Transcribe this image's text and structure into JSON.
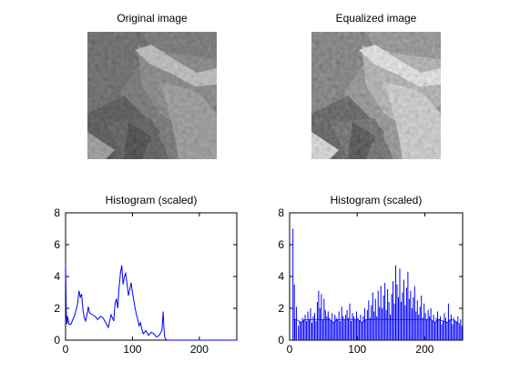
{
  "panels": {
    "original_title": "Original image",
    "equalized_title": "Equalized image",
    "hist1_title": "Histogram (scaled)",
    "hist2_title": "Histogram (scaled)"
  },
  "colors": {
    "line": "#0000ff",
    "axis": "#000000",
    "background": "#ffffff"
  },
  "chart_data": [
    {
      "type": "line",
      "title": "Histogram (scaled)",
      "xlabel": "",
      "ylabel": "",
      "xlim": [
        0,
        256
      ],
      "ylim": [
        0,
        8
      ],
      "xticks": [
        "0",
        "100",
        "200"
      ],
      "yticks": [
        "0",
        "2",
        "4",
        "6",
        "8"
      ],
      "grid": false,
      "x": [
        0,
        1,
        2,
        3,
        5,
        8,
        10,
        14,
        18,
        20,
        22,
        24,
        26,
        28,
        30,
        32,
        34,
        36,
        40,
        44,
        48,
        52,
        56,
        60,
        64,
        68,
        72,
        74,
        76,
        78,
        80,
        82,
        84,
        86,
        88,
        90,
        92,
        94,
        96,
        98,
        100,
        102,
        104,
        106,
        108,
        110,
        112,
        114,
        116,
        118,
        120,
        124,
        128,
        132,
        136,
        140,
        144,
        146,
        147,
        148,
        150,
        152,
        256
      ],
      "values": [
        4.8,
        1.8,
        1.0,
        1.5,
        1.0,
        1.0,
        1.2,
        1.6,
        2.3,
        3.1,
        2.7,
        2.9,
        1.9,
        1.4,
        1.2,
        1.6,
        2.1,
        1.7,
        1.6,
        1.5,
        1.3,
        1.5,
        1.4,
        1.1,
        0.8,
        1.6,
        1.2,
        2.3,
        2.6,
        2.0,
        3.3,
        4.2,
        4.7,
        3.5,
        4.0,
        4.2,
        3.5,
        2.8,
        3.2,
        3.6,
        3.0,
        2.5,
        2.0,
        1.6,
        1.3,
        0.9,
        1.1,
        0.7,
        0.4,
        0.5,
        0.6,
        0.3,
        0.5,
        0.4,
        0.2,
        0.3,
        0.6,
        1.8,
        0.8,
        0.2,
        0.05,
        0.0,
        0.0
      ]
    },
    {
      "type": "bar",
      "title": "Histogram (scaled)",
      "xlabel": "",
      "ylabel": "",
      "xlim": [
        0,
        256
      ],
      "ylim": [
        0,
        8
      ],
      "xticks": [
        "0",
        "100",
        "200"
      ],
      "yticks": [
        "0",
        "2",
        "4",
        "6",
        "8"
      ],
      "grid": false,
      "x": [
        5,
        7,
        8,
        10,
        13,
        15,
        17,
        19,
        21,
        23,
        25,
        27,
        29,
        31,
        33,
        35,
        37,
        39,
        41,
        43,
        45,
        47,
        49,
        51,
        53,
        55,
        57,
        59,
        61,
        63,
        65,
        67,
        69,
        71,
        73,
        75,
        77,
        79,
        81,
        83,
        85,
        87,
        89,
        91,
        93,
        95,
        97,
        99,
        101,
        103,
        105,
        107,
        109,
        111,
        113,
        115,
        117,
        119,
        121,
        123,
        125,
        127,
        129,
        131,
        133,
        135,
        137,
        139,
        141,
        143,
        145,
        147,
        149,
        151,
        153,
        155,
        157,
        159,
        161,
        163,
        165,
        167,
        169,
        171,
        173,
        175,
        177,
        179,
        181,
        183,
        185,
        187,
        189,
        191,
        193,
        195,
        197,
        199,
        201,
        203,
        205,
        207,
        209,
        211,
        213,
        215,
        217,
        219,
        221,
        223,
        225,
        227,
        229,
        231,
        233,
        235,
        237,
        239,
        241,
        243,
        245,
        247,
        249,
        251,
        253,
        255
      ],
      "values": [
        7.0,
        3.5,
        1.3,
        2.1,
        0.9,
        1.2,
        1.1,
        1.4,
        1.3,
        1.6,
        1.2,
        1.8,
        1.3,
        2.0,
        1.1,
        1.5,
        1.7,
        1.2,
        2.4,
        3.1,
        2.0,
        2.9,
        1.3,
        2.6,
        1.9,
        1.5,
        1.8,
        1.4,
        1.2,
        1.7,
        1.1,
        1.6,
        1.4,
        1.3,
        1.8,
        1.2,
        2.1,
        1.5,
        1.3,
        1.6,
        1.9,
        1.4,
        2.3,
        1.2,
        1.7,
        1.5,
        1.3,
        1.8,
        1.4,
        1.2,
        1.6,
        1.1,
        1.5,
        2.0,
        1.3,
        1.9,
        2.5,
        1.4,
        2.2,
        3.0,
        1.8,
        2.6,
        1.5,
        3.1,
        2.1,
        3.4,
        2.0,
        2.8,
        3.6,
        1.9,
        3.2,
        2.4,
        1.6,
        2.9,
        3.7,
        2.3,
        4.7,
        3.5,
        2.7,
        4.5,
        2.4,
        3.0,
        3.8,
        2.2,
        3.3,
        4.3,
        2.6,
        3.1,
        2.0,
        2.7,
        3.4,
        1.8,
        2.5,
        1.6,
        2.1,
        2.8,
        1.4,
        2.3,
        1.7,
        1.3,
        1.9,
        1.5,
        2.0,
        1.2,
        1.6,
        1.1,
        1.4,
        1.8,
        1.3,
        1.5,
        1.0,
        1.2,
        1.7,
        1.4,
        1.1,
        2.3,
        1.3,
        1.6,
        1.0,
        1.4,
        1.2,
        1.1,
        1.5,
        1.0,
        1.3,
        0.9
      ]
    }
  ]
}
